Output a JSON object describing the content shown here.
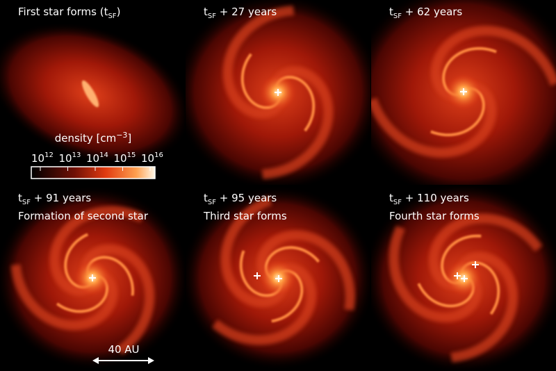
{
  "panels": [
    {
      "title": {
        "text": "First star forms (t",
        "sub": "SF",
        "end": ")"
      }
    },
    {
      "title": {
        "text": "t",
        "sub": "SF",
        "end": " + 27 years"
      }
    },
    {
      "title": {
        "text": "t",
        "sub": "SF",
        "end": " + 62 years"
      }
    },
    {
      "title": {
        "text": "t",
        "sub": "SF",
        "end": " + 91 years"
      },
      "subtitle": "Formation of second star"
    },
    {
      "title": {
        "text": "t",
        "sub": "SF",
        "end": " + 95 years"
      },
      "subtitle": "Third star forms"
    },
    {
      "title": {
        "text": "t",
        "sub": "SF",
        "end": " + 110 years"
      },
      "subtitle": "Fourth star forms"
    }
  ],
  "colorbar": {
    "label": {
      "text": "density [cm",
      "sup": "−3",
      "end": "]"
    },
    "ticks": [
      {
        "base": "10",
        "exp": "12"
      },
      {
        "base": "10",
        "exp": "13"
      },
      {
        "base": "10",
        "exp": "14"
      },
      {
        "base": "10",
        "exp": "15"
      },
      {
        "base": "10",
        "exp": "16"
      }
    ]
  },
  "scale_bar": {
    "label": "40 AU"
  }
}
